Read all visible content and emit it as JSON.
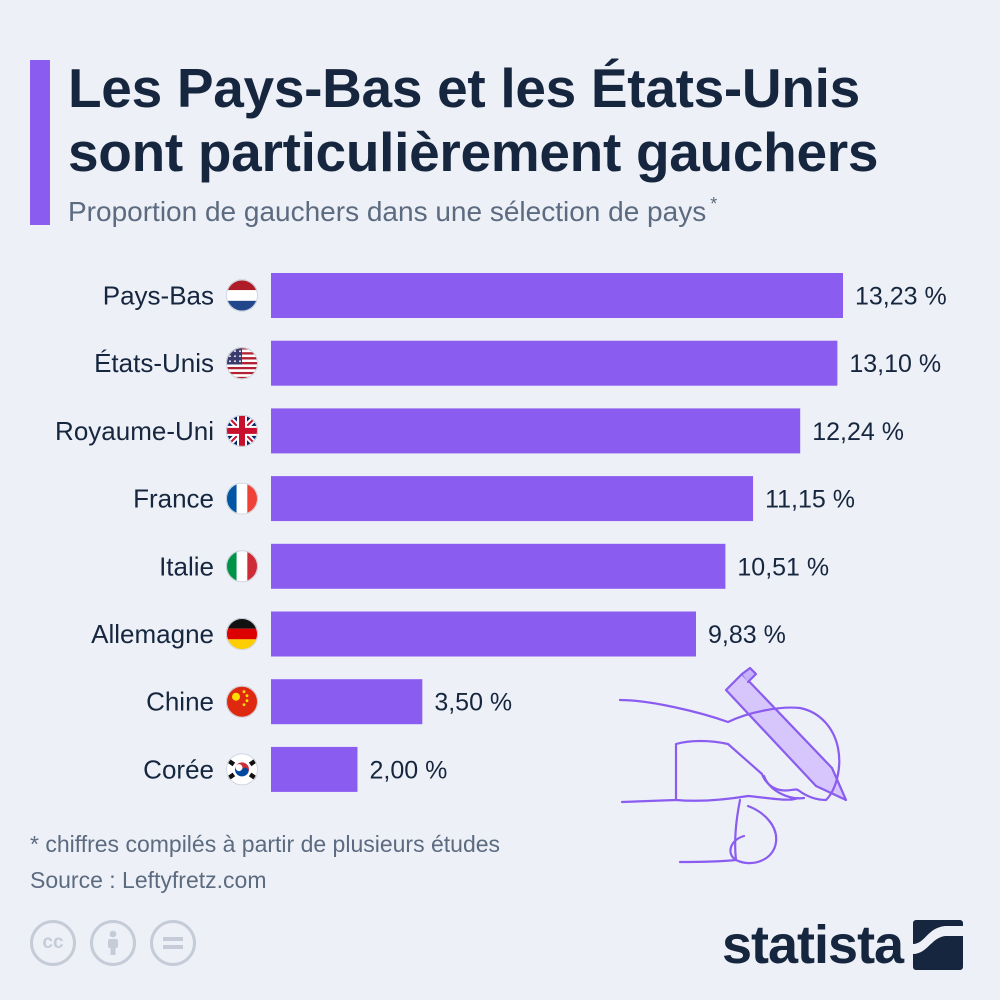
{
  "title_line1": "Les Pays-Bas et les États-Unis",
  "title_line2": "sont particulièrement gauchers",
  "subtitle": "Proportion de gauchers dans une sélection de pays",
  "subtitle_marker": "*",
  "footnote": "* chiffres compilés à partir de plusieurs études",
  "source": "Source : Leftyfretz.com",
  "brand": "statista",
  "license_icons": [
    "cc-icon",
    "by-icon",
    "nd-icon"
  ],
  "colors": {
    "bar": "#8b5cf0",
    "accent": "#8b5cf0",
    "text": "#17263f",
    "muted": "#5c6b80",
    "background": "#edf1f7"
  },
  "chart_data": {
    "type": "bar",
    "orientation": "horizontal",
    "categories": [
      "Pays-Bas",
      "États-Unis",
      "Royaume-Uni",
      "France",
      "Italie",
      "Allemagne",
      "Chine",
      "Corée"
    ],
    "values": [
      13.23,
      13.1,
      12.24,
      11.15,
      10.51,
      9.83,
      3.5,
      2.0
    ],
    "labels": [
      "13,23 %",
      "13,10 %",
      "12,24 %",
      "11,15 %",
      "10,51 %",
      "9,83 %",
      "3,50 %",
      "2,00 %"
    ],
    "flags": [
      "netherlands-flag-icon",
      "usa-flag-icon",
      "uk-flag-icon",
      "france-flag-icon",
      "italy-flag-icon",
      "germany-flag-icon",
      "china-flag-icon",
      "korea-flag-icon"
    ],
    "xlim": [
      0,
      14
    ],
    "grid": false,
    "legend": "none"
  }
}
